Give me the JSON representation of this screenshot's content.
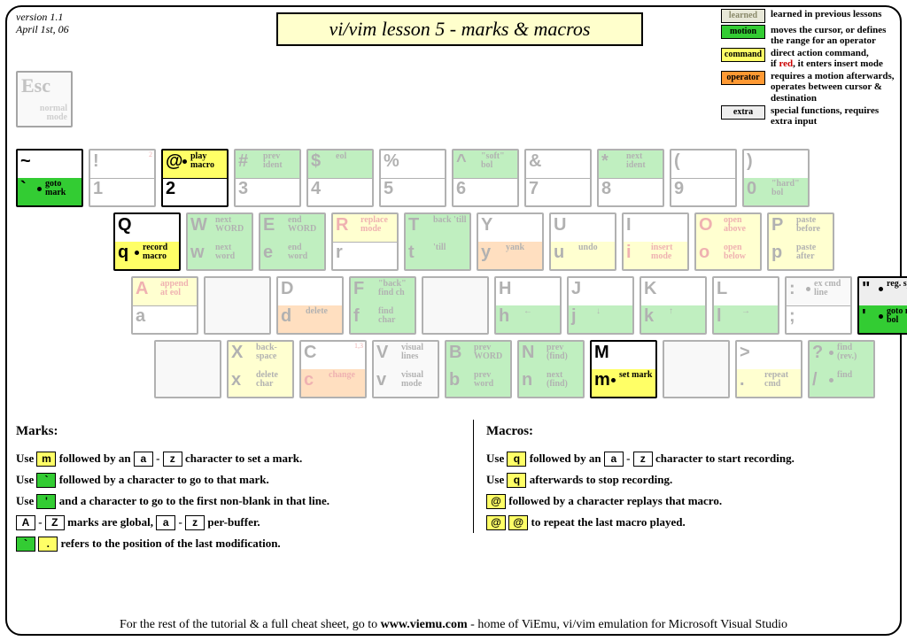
{
  "meta": {
    "version": "version 1.1",
    "date": "April 1st, 06"
  },
  "title": "vi/vim lesson 5 - marks & macros",
  "legend": [
    {
      "cls": "learned",
      "label": "learned",
      "desc": "learned in previous lessons"
    },
    {
      "cls": "motion",
      "label": "motion",
      "desc": "moves the cursor, or defines the range for an operator"
    },
    {
      "cls": "command",
      "label": "command",
      "desc": "direct action command,\nif <span class='red'>red</span>, it enters insert mode"
    },
    {
      "cls": "operator",
      "label": "operator",
      "desc": "requires a motion afterwards, operates between cursor & destination"
    },
    {
      "cls": "extra",
      "label": "extra",
      "desc": "special functions, requires extra input"
    }
  ],
  "esc": {
    "big": "Esc",
    "small": "normal\nmode"
  },
  "rows": [
    [
      {
        "top": {
          "g": "~",
          "cls": ""
        },
        "bot": {
          "g": "`",
          "lbl": "goto mark",
          "dot": true,
          "cls": "h-motion"
        },
        "active": true
      },
      {
        "top": {
          "g": "!",
          "cls": ""
        },
        "bot": {
          "g": "1",
          "cls": ""
        },
        "faded": true,
        "sup": "2"
      },
      {
        "top": {
          "g": "@",
          "lbl": "play macro",
          "dot": true,
          "cls": "h-command"
        },
        "bot": {
          "g": "2",
          "cls": ""
        },
        "active": true
      },
      {
        "top": {
          "g": "#",
          "lbl": "prev ident",
          "cls": "h-motion"
        },
        "bot": {
          "g": "3",
          "cls": ""
        },
        "faded": true
      },
      {
        "top": {
          "g": "$",
          "lbl": "eol",
          "cls": "h-motion"
        },
        "bot": {
          "g": "4",
          "cls": ""
        },
        "faded": true
      },
      {
        "top": {
          "g": "%",
          "cls": ""
        },
        "bot": {
          "g": "5",
          "cls": ""
        },
        "faded": true
      },
      {
        "top": {
          "g": "^",
          "lbl": "\"soft\" bol",
          "cls": "h-motion"
        },
        "bot": {
          "g": "6",
          "cls": ""
        },
        "faded": true
      },
      {
        "top": {
          "g": "&",
          "cls": ""
        },
        "bot": {
          "g": "7",
          "cls": ""
        },
        "faded": true
      },
      {
        "top": {
          "g": "*",
          "lbl": "next ident",
          "cls": "h-motion"
        },
        "bot": {
          "g": "8",
          "cls": ""
        },
        "faded": true
      },
      {
        "top": {
          "g": "(",
          "cls": ""
        },
        "bot": {
          "g": "9",
          "cls": ""
        },
        "faded": true
      },
      {
        "top": {
          "g": ")",
          "cls": ""
        },
        "bot": {
          "g": "0",
          "lbl": "\"hard\" bol",
          "cls": "h-motion"
        },
        "faded": true
      }
    ],
    [
      {
        "top": {
          "g": "Q",
          "cls": ""
        },
        "bot": {
          "g": "q",
          "lbl": "record macro",
          "dot": true,
          "cls": "h-command"
        },
        "active": true
      },
      {
        "top": {
          "g": "W",
          "lbl": "next WORD",
          "cls": "h-motion"
        },
        "bot": {
          "g": "w",
          "lbl": "next word",
          "cls": "h-motion"
        },
        "faded": true
      },
      {
        "top": {
          "g": "E",
          "lbl": "end WORD",
          "cls": "h-motion"
        },
        "bot": {
          "g": "e",
          "lbl": "end word",
          "cls": "h-motion"
        },
        "faded": true
      },
      {
        "top": {
          "g": "R",
          "lbl": "replace mode",
          "cls": "h-command",
          "red": true
        },
        "bot": {
          "g": "r",
          "cls": ""
        },
        "faded": true
      },
      {
        "top": {
          "g": "T",
          "lbl": "back 'till",
          "cls": "h-motion"
        },
        "bot": {
          "g": "t",
          "lbl": "'till",
          "cls": "h-motion"
        },
        "faded": true
      },
      {
        "top": {
          "g": "Y",
          "cls": ""
        },
        "bot": {
          "g": "y",
          "lbl": "yank",
          "cls": "h-operator"
        },
        "faded": true
      },
      {
        "top": {
          "g": "U",
          "cls": ""
        },
        "bot": {
          "g": "u",
          "lbl": "undo",
          "cls": "h-command"
        },
        "faded": true
      },
      {
        "top": {
          "g": "I",
          "cls": ""
        },
        "bot": {
          "g": "i",
          "lbl": "insert mode",
          "cls": "h-command",
          "red": true
        },
        "faded": true
      },
      {
        "top": {
          "g": "O",
          "lbl": "open above",
          "cls": "h-command",
          "red": true
        },
        "bot": {
          "g": "o",
          "lbl": "open below",
          "cls": "h-command",
          "red": true
        },
        "faded": true
      },
      {
        "top": {
          "g": "P",
          "lbl": "paste before",
          "cls": "h-command"
        },
        "bot": {
          "g": "p",
          "lbl": "paste after",
          "cls": "h-command"
        },
        "faded": true
      }
    ],
    [
      {
        "top": {
          "g": "A",
          "lbl": "append at eol",
          "cls": "h-command",
          "red": true
        },
        "bot": {
          "g": "a",
          "cls": ""
        },
        "faded": true
      },
      {
        "blank": true,
        "faded": true
      },
      {
        "top": {
          "g": "D",
          "cls": ""
        },
        "bot": {
          "g": "d",
          "lbl": "delete",
          "cls": "h-operator"
        },
        "faded": true
      },
      {
        "top": {
          "g": "F",
          "lbl": "\"back\" find ch",
          "cls": "h-motion"
        },
        "bot": {
          "g": "f",
          "lbl": "find char",
          "cls": "h-motion"
        },
        "faded": true
      },
      {
        "blank": true,
        "faded": true
      },
      {
        "top": {
          "g": "H",
          "cls": ""
        },
        "bot": {
          "g": "h",
          "lbl": "←",
          "cls": "h-motion"
        },
        "faded": true
      },
      {
        "top": {
          "g": "J",
          "cls": ""
        },
        "bot": {
          "g": "j",
          "lbl": "↓",
          "cls": "h-motion"
        },
        "faded": true
      },
      {
        "top": {
          "g": "K",
          "cls": ""
        },
        "bot": {
          "g": "k",
          "lbl": "↑",
          "cls": "h-motion"
        },
        "faded": true
      },
      {
        "top": {
          "g": "L",
          "cls": ""
        },
        "bot": {
          "g": "l",
          "lbl": "→",
          "cls": "h-motion"
        },
        "faded": true
      },
      {
        "top": {
          "g": ":",
          "lbl": "ex cmd line",
          "dot": true,
          "cls": "h-extra"
        },
        "bot": {
          "g": ";",
          "cls": ""
        },
        "faded": true
      },
      {
        "top": {
          "g": "\"",
          "lbl": "reg. spec",
          "dot": true,
          "cls": "h-extra",
          "sup": "3"
        },
        "bot": {
          "g": "'",
          "lbl": "goto mk. bol",
          "dot": true,
          "cls": "h-motion"
        },
        "active": true
      }
    ],
    [
      {
        "blank": true,
        "faded": true
      },
      {
        "top": {
          "g": "X",
          "lbl": "back- space",
          "cls": "h-command"
        },
        "bot": {
          "g": "x",
          "lbl": "delete char",
          "cls": "h-command"
        },
        "faded": true
      },
      {
        "top": {
          "g": "C",
          "cls": "",
          "sup": "1,3"
        },
        "bot": {
          "g": "c",
          "lbl": "change",
          "cls": "h-operator",
          "red": true
        },
        "faded": true
      },
      {
        "top": {
          "g": "V",
          "lbl": "visual lines",
          "cls": "h-extra"
        },
        "bot": {
          "g": "v",
          "lbl": "visual mode",
          "cls": "h-extra"
        },
        "faded": true
      },
      {
        "top": {
          "g": "B",
          "lbl": "prev WORD",
          "cls": "h-motion"
        },
        "bot": {
          "g": "b",
          "lbl": "prev word",
          "cls": "h-motion"
        },
        "faded": true
      },
      {
        "top": {
          "g": "N",
          "lbl": "prev (find)",
          "cls": "h-motion"
        },
        "bot": {
          "g": "n",
          "lbl": "next (find)",
          "cls": "h-motion"
        },
        "faded": true
      },
      {
        "top": {
          "g": "M",
          "cls": ""
        },
        "bot": {
          "g": "m",
          "lbl": "set mark",
          "dot": true,
          "cls": "h-command"
        },
        "active": true
      },
      {
        "blank": true,
        "faded": true
      },
      {
        "top": {
          "g": ">",
          "cls": ""
        },
        "bot": {
          "g": ".",
          "lbl": "repeat cmd",
          "cls": "h-command"
        },
        "faded": true
      },
      {
        "top": {
          "g": "?",
          "lbl": "find (rev.)",
          "dot": true,
          "cls": "h-motion"
        },
        "bot": {
          "g": "/",
          "lbl": "find",
          "dot": true,
          "cls": "h-motion"
        },
        "faded": true
      }
    ]
  ],
  "marks": {
    "title": "Marks:",
    "lines": [
      "Use <span class='kb y'>m</span> followed by an <span class='kb'>a</span> - <span class='kb'>z</span> character to set a mark.",
      "Use <span class='kb g'>`</span> followed by a character to go to that mark.",
      "Use <span class='kb g'>'</span> and a character to go to the first non-blank in that line.",
      "<span class='kb'>A</span> - <span class='kb'>Z</span> marks are global, <span class='kb'>a</span> - <span class='kb'>z</span> per-buffer.",
      "<span class='kb g'>`</span> <span class='kb y'>.</span> refers to the position of the last modification."
    ]
  },
  "macros": {
    "title": "Macros:",
    "lines": [
      "Use <span class='kb y'>q</span> followed by an <span class='kb'>a</span> - <span class='kb'>z</span> character to start recording.",
      "Use <span class='kb y'>q</span> afterwards to stop recording.",
      "<span class='kb y'>@</span> followed by a character replays that macro.",
      "<span class='kb y'>@</span> <span class='kb y'>@</span> to repeat the last macro played."
    ]
  },
  "footer": "For the rest of the tutorial & a full cheat sheet, go to <b>www.viemu.com</b> - home of ViEmu, vi/vim emulation for Microsoft Visual Studio"
}
